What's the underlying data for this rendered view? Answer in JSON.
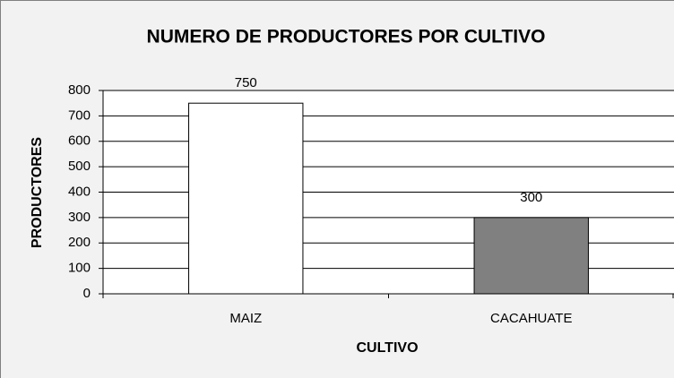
{
  "chart_data": {
    "type": "bar",
    "title": "NUMERO DE PRODUCTORES POR CULTIVO",
    "x_label": "CULTIVO",
    "y_label": "PRODUCTORES",
    "categories": [
      "MAIZ",
      "CACAHUATE"
    ],
    "values": [
      750,
      300
    ],
    "colors": [
      "#ffffff",
      "#808080"
    ],
    "ylim": [
      0,
      800
    ],
    "yticks": [
      0,
      100,
      200,
      300,
      400,
      500,
      600,
      700,
      800
    ],
    "grid": true
  }
}
